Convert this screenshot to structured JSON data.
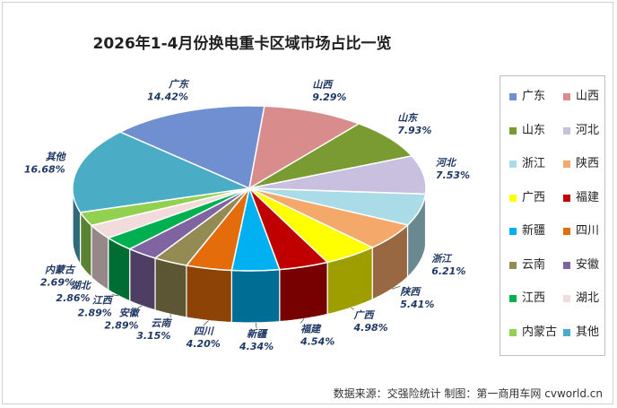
{
  "title": "2026年1-4月份换电重卡区域市场占比一览",
  "source_note": "数据来源：交强险统计   制图：第一商用车网 cvworld.cn",
  "chart_data": {
    "type": "pie",
    "title": "2026年1-4月份换电重卡区域市场占比一览",
    "unit": "%",
    "slices": [
      {
        "name": "广东",
        "value": 14.42,
        "label": "14.42%",
        "color": "#6f8fd0"
      },
      {
        "name": "山西",
        "value": 9.29,
        "label": "9.29%",
        "color": "#d98c8c"
      },
      {
        "name": "山东",
        "value": 7.93,
        "label": "7.93%",
        "color": "#7a9a32"
      },
      {
        "name": "河北",
        "value": 7.53,
        "label": "7.53%",
        "color": "#c9bfdf"
      },
      {
        "name": "浙江",
        "value": 6.21,
        "label": "6.21%",
        "color": "#a9dce6"
      },
      {
        "name": "陕西",
        "value": 5.41,
        "label": "5.41%",
        "color": "#f4a86a"
      },
      {
        "name": "广西",
        "value": 4.98,
        "label": "4.98%",
        "color": "#ffff00"
      },
      {
        "name": "福建",
        "value": 4.54,
        "label": "4.54%",
        "color": "#c00000"
      },
      {
        "name": "新疆",
        "value": 4.34,
        "label": "4.34%",
        "color": "#00b0f0"
      },
      {
        "name": "四川",
        "value": 4.2,
        "label": "4.20%",
        "color": "#e46c0a"
      },
      {
        "name": "云南",
        "value": 3.15,
        "label": "3.15%",
        "color": "#948a54"
      },
      {
        "name": "安徽",
        "value": 2.89,
        "label": "2.89%",
        "color": "#8064a2"
      },
      {
        "name": "江西",
        "value": 2.89,
        "label": "2.89%",
        "color": "#00b050"
      },
      {
        "name": "湖北",
        "value": 2.86,
        "label": "2.86%",
        "color": "#f2dcdb"
      },
      {
        "name": "内蒙古",
        "value": 2.69,
        "label": "2.69%",
        "color": "#92d050"
      },
      {
        "name": "其他",
        "value": 16.68,
        "label": "16.68%",
        "color": "#4bacc6"
      }
    ],
    "legend_position": "right"
  }
}
